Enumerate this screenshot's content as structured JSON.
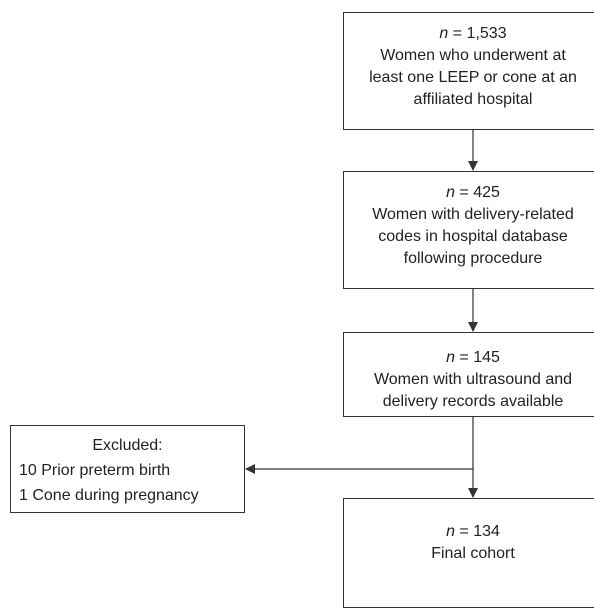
{
  "flowchart": {
    "boxes": [
      {
        "n": "1,533",
        "lines": [
          "Women who underwent at",
          "least one LEEP or cone at an",
          "affiliated hospital"
        ]
      },
      {
        "n": "425",
        "lines": [
          "Women with delivery-related",
          "codes in hospital database",
          "following procedure"
        ]
      },
      {
        "n": "145",
        "lines": [
          "Women with ultrasound and",
          "delivery records available"
        ]
      },
      {
        "n": "134",
        "lines": [
          "Final cohort"
        ]
      }
    ],
    "n_prefix": "n",
    "n_equals": " = ",
    "excluded": {
      "title": "Excluded:",
      "items": [
        "10 Prior preterm birth",
        "1 Cone during pregnancy"
      ]
    }
  },
  "colors": {
    "line": "#333333",
    "text": "#222222",
    "background": "#ffffff"
  }
}
